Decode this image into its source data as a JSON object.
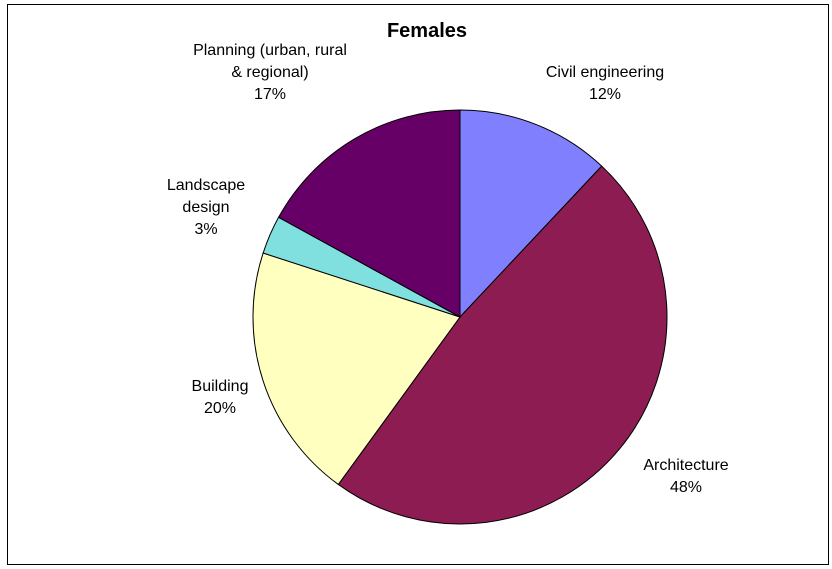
{
  "chart_data": {
    "type": "pie",
    "title": "Females",
    "categories": [
      "Civil engineering",
      "Architecture",
      "Building",
      "Landscape design",
      "Planning (urban, rural & regional)"
    ],
    "values": [
      12,
      48,
      20,
      3,
      17
    ],
    "value_labels": [
      "12%",
      "48%",
      "20%",
      "3%",
      "17%"
    ],
    "colors": [
      "#8080ff",
      "#8c1c52",
      "#ffffc0",
      "#80e0e0",
      "#660066"
    ]
  }
}
